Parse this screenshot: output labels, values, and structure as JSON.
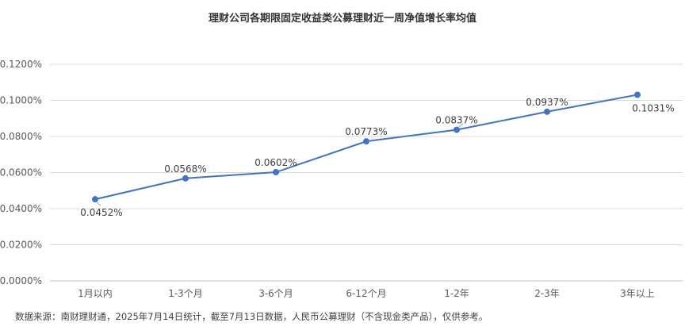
{
  "chart_data": {
    "type": "line",
    "title": "理财公司各期限固定收益类公募理财近一周净值增长率均值",
    "categories": [
      "1月以内",
      "1-3个月",
      "3-6个月",
      "6-12个月",
      "1-2年",
      "2-3年",
      "3年以上"
    ],
    "values": [
      0.0452,
      0.0568,
      0.0602,
      0.0773,
      0.0837,
      0.0937,
      0.1031
    ],
    "data_labels": [
      "0.0452%",
      "0.0568%",
      "0.0602%",
      "0.0773%",
      "0.0837%",
      "0.0937%",
      "0.1031%"
    ],
    "y_ticks": [
      "0.0000%",
      "0.0200%",
      "0.0400%",
      "0.0600%",
      "0.0800%",
      "0.1000%",
      "0.1200%"
    ],
    "ylim": [
      0,
      0.12
    ],
    "xlabel": "",
    "ylabel": "",
    "grid": true,
    "line_color": "#4472C4"
  },
  "footer": {
    "source": "数据来源：南财理财通，2025年7月14日统计，截至7月13日数据，人民币公募理财（不含现金类产品），仅供参考。"
  }
}
